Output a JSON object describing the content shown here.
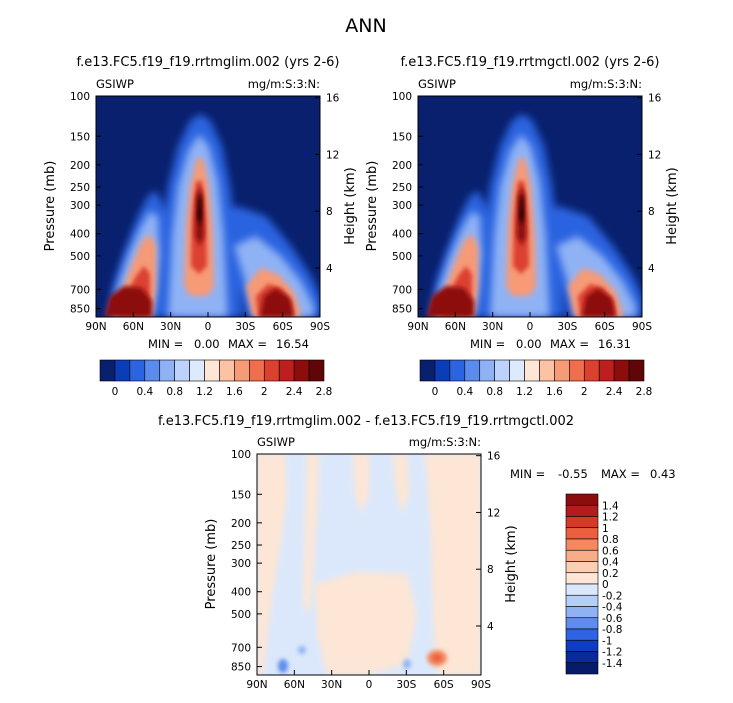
{
  "page_title": "ANN",
  "panels": [
    {
      "title": "f.e13.FC5.f19_f19.rrtmglim.002 (yrs 2-6)",
      "field": "GSIWP",
      "units": "mg/m:S:3:N:",
      "min_label": "MIN =",
      "min_value": "0.00",
      "max_label": "MAX =",
      "max_value": "16.54"
    },
    {
      "title": "f.e13.FC5.f19_f19.rrtmgctl.002 (yrs 2-6)",
      "field": "GSIWP",
      "units": "mg/m:S:3:N:",
      "min_label": "MIN =",
      "min_value": "0.00",
      "max_label": "MAX =",
      "max_value": "16.31"
    },
    {
      "title": "f.e13.FC5.f19_f19.rrtmglim.002 - f.e13.FC5.f19_f19.rrtmgctl.002",
      "field": "GSIWP",
      "units": "mg/m:S:3:N:",
      "min_label": "MIN =",
      "min_value": "-0.55",
      "max_label": "MAX =",
      "max_value": "0.43"
    }
  ],
  "axes": {
    "ylabel": "Pressure (mb)",
    "y2label": "Height (km)",
    "pressure_ticks": [
      "100",
      "150",
      "200",
      "250",
      "300",
      "400",
      "500",
      "700",
      "850"
    ],
    "height_ticks": [
      "16",
      "12",
      "8",
      "4"
    ],
    "lat_ticks": [
      "90N",
      "60N",
      "30N",
      "0",
      "30S",
      "60S",
      "90S"
    ]
  },
  "colorbar_main": {
    "labels": [
      "0",
      "0.4",
      "0.8",
      "1.2",
      "1.6",
      "2",
      "2.4",
      "2.8"
    ],
    "colors": [
      "#08206e",
      "#0b3db8",
      "#2b63e0",
      "#5b8bee",
      "#8fb2f5",
      "#bcd2fa",
      "#dde9fc",
      "#fde6d5",
      "#fbc3a3",
      "#f79a76",
      "#ef6e4e",
      "#dc4130",
      "#bf1e1e",
      "#8d0d0d",
      "#600606"
    ]
  },
  "colorbar_diff": {
    "labels": [
      "1.4",
      "1.2",
      "1",
      "0.8",
      "0.6",
      "0.4",
      "0.2",
      "0",
      "-0.2",
      "-0.4",
      "-0.6",
      "-0.8",
      "-1",
      "-1.2",
      "-1.4"
    ],
    "colors": [
      "#8d0d0d",
      "#b51b1b",
      "#d63a26",
      "#ec5f3e",
      "#f6875f",
      "#f8ac88",
      "#fbcfb2",
      "#fde6d5",
      "#dbe8fb",
      "#b6cff7",
      "#8fb2f5",
      "#5f8def",
      "#2f63e4",
      "#0d3dc2",
      "#0a2a99",
      "#061c6b"
    ]
  },
  "chart_data": [
    {
      "type": "heatmap",
      "title": "f.e13.FC5.f19_f19.rrtmglim.002 (yrs 2-6)",
      "x_ticks": [
        "90N",
        "60N",
        "30N",
        "0",
        "30S",
        "60S",
        "90S"
      ],
      "y_ticks": [
        "100",
        "150",
        "200",
        "250",
        "300",
        "400",
        "500",
        "700",
        "850"
      ],
      "xlim": [
        90,
        -90
      ],
      "ylim": [
        100,
        850
      ],
      "min": 0.0,
      "max": 16.54,
      "levels": [
        0,
        0.2,
        0.4,
        0.6,
        0.8,
        1.0,
        1.2,
        1.4,
        1.6,
        1.8,
        2.0,
        2.2,
        2.4,
        2.6,
        2.8
      ]
    },
    {
      "type": "heatmap",
      "title": "f.e13.FC5.f19_f19.rrtmgctl.002 (yrs 2-6)",
      "x_ticks": [
        "90N",
        "60N",
        "30N",
        "0",
        "30S",
        "60S",
        "90S"
      ],
      "y_ticks": [
        "100",
        "150",
        "200",
        "250",
        "300",
        "400",
        "500",
        "700",
        "850"
      ],
      "xlim": [
        90,
        -90
      ],
      "ylim": [
        100,
        850
      ],
      "min": 0.0,
      "max": 16.31,
      "levels": [
        0,
        0.2,
        0.4,
        0.6,
        0.8,
        1.0,
        1.2,
        1.4,
        1.6,
        1.8,
        2.0,
        2.2,
        2.4,
        2.6,
        2.8
      ]
    },
    {
      "type": "heatmap",
      "title": "f.e13.FC5.f19_f19.rrtmglim.002 - f.e13.FC5.f19_f19.rrtmgctl.002",
      "x_ticks": [
        "90N",
        "60N",
        "30N",
        "0",
        "30S",
        "60S",
        "90S"
      ],
      "y_ticks": [
        "100",
        "150",
        "200",
        "250",
        "300",
        "400",
        "500",
        "700",
        "850"
      ],
      "xlim": [
        90,
        -90
      ],
      "ylim": [
        100,
        850
      ],
      "min": -0.55,
      "max": 0.43,
      "levels": [
        -1.4,
        -1.2,
        -1.0,
        -0.8,
        -0.6,
        -0.4,
        -0.2,
        0,
        0.2,
        0.4,
        0.6,
        0.8,
        1.0,
        1.2,
        1.4
      ]
    }
  ]
}
